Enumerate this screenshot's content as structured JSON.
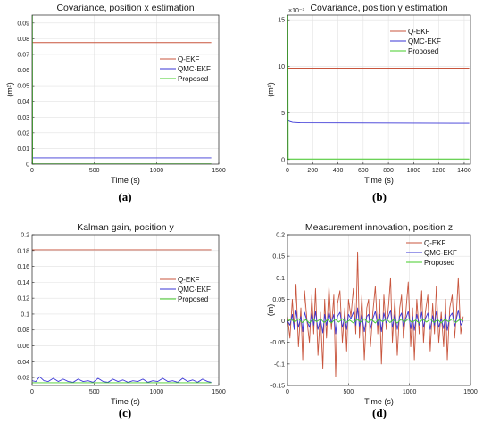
{
  "colors": {
    "Q-EKF": "#c8553d",
    "QMC-EKF": "#3a36d6",
    "Proposed": "#44cc2a",
    "grid": "#e2e2e2",
    "axis": "#262626"
  },
  "chart_data": [
    {
      "type": "line",
      "panel_label": "(a)",
      "title": "Covariance, position x estimation",
      "xlabel": "Time (s)",
      "ylabel": "(m²)",
      "xlim": [
        0,
        1500
      ],
      "ylim": [
        0,
        0.095
      ],
      "xticks": [
        "0",
        "500",
        "1000",
        "1500"
      ],
      "yticks": [
        "0",
        "0.01",
        "0.02",
        "0.03",
        "0.04",
        "0.05",
        "0.06",
        "0.07",
        "0.08",
        "0.09"
      ],
      "legend": "right",
      "series": [
        {
          "name": "Q-EKF",
          "x": [
            0,
            1440
          ],
          "y": [
            0.0775,
            0.0775
          ]
        },
        {
          "name": "QMC-EKF",
          "x": [
            0,
            1440
          ],
          "y": [
            0.004,
            0.004
          ]
        },
        {
          "name": "Proposed",
          "x": [
            0,
            2,
            4,
            1440
          ],
          "y": [
            0.095,
            0.095,
            0.0002,
            0.0002
          ]
        }
      ]
    },
    {
      "type": "line",
      "panel_label": "(b)",
      "title": "Covariance, position y estimation",
      "xlabel": "Time (s)",
      "ylabel": "(m²)",
      "exponent": "×10⁻³",
      "xlim": [
        0,
        1450
      ],
      "ylim": [
        -0.5,
        15.5
      ],
      "xticks": [
        "0",
        "200",
        "400",
        "600",
        "800",
        "1000",
        "1200",
        "1400"
      ],
      "yticks": [
        "0",
        "5",
        "10",
        "15"
      ],
      "legend": "top-right",
      "series": [
        {
          "name": "Q-EKF",
          "x": [
            0,
            1440
          ],
          "y": [
            9.8,
            9.8
          ]
        },
        {
          "name": "QMC-EKF",
          "x": [
            0,
            15,
            40,
            100,
            1440
          ],
          "y": [
            4.3,
            4.1,
            4.0,
            3.95,
            3.9
          ]
        },
        {
          "name": "Proposed",
          "x": [
            0,
            3,
            6,
            1440
          ],
          "y": [
            15.5,
            15.5,
            0.05,
            0.05
          ]
        }
      ]
    },
    {
      "type": "line",
      "panel_label": "(c)",
      "title": "Kalman gain, position y",
      "xlabel": "Time (s)",
      "ylabel": "",
      "xlim": [
        0,
        1500
      ],
      "ylim": [
        0.01,
        0.2
      ],
      "xticks": [
        "0",
        "500",
        "1000",
        "1500"
      ],
      "yticks": [
        "0.02",
        "0.04",
        "0.06",
        "0.08",
        "0.1",
        "0.12",
        "0.14",
        "0.16",
        "0.18",
        "0.2"
      ],
      "legend": "right",
      "series": [
        {
          "name": "Q-EKF",
          "x": [
            0,
            1440
          ],
          "y": [
            0.181,
            0.181
          ]
        },
        {
          "name": "QMC-EKF",
          "x": [
            0,
            30,
            60,
            95,
            130,
            170,
            210,
            250,
            290,
            330,
            370,
            410,
            450,
            490,
            530,
            570,
            610,
            650,
            690,
            730,
            770,
            810,
            850,
            890,
            930,
            970,
            1010,
            1050,
            1090,
            1130,
            1170,
            1210,
            1250,
            1290,
            1330,
            1370,
            1410,
            1440
          ],
          "y": [
            0.016,
            0.015,
            0.021,
            0.016,
            0.015,
            0.019,
            0.015,
            0.018,
            0.015,
            0.014,
            0.018,
            0.015,
            0.016,
            0.014,
            0.019,
            0.015,
            0.014,
            0.018,
            0.015,
            0.017,
            0.014,
            0.016,
            0.015,
            0.018,
            0.014,
            0.016,
            0.015,
            0.019,
            0.015,
            0.016,
            0.014,
            0.019,
            0.015,
            0.017,
            0.014,
            0.018,
            0.015,
            0.014
          ]
        },
        {
          "name": "Proposed",
          "x": [
            0,
            1440
          ],
          "y": [
            0.0135,
            0.0135
          ]
        }
      ]
    },
    {
      "type": "line",
      "panel_label": "(d)",
      "title": "Measurement innovation, position z",
      "xlabel": "Time (s)",
      "ylabel": "(m)",
      "xlim": [
        0,
        1500
      ],
      "ylim": [
        -0.15,
        0.2
      ],
      "xticks": [
        "0",
        "500",
        "1000",
        "1500"
      ],
      "yticks": [
        "-0.15",
        "-0.1",
        "-0.05",
        "0",
        "0.05",
        "0.1",
        "0.15",
        "0.2"
      ],
      "legend": "top-right",
      "series": [
        {
          "name": "Q-EKF",
          "x": [
            0,
            20,
            40,
            55,
            70,
            90,
            110,
            125,
            140,
            160,
            180,
            200,
            215,
            230,
            250,
            270,
            290,
            305,
            320,
            340,
            360,
            380,
            395,
            410,
            430,
            450,
            470,
            485,
            500,
            520,
            540,
            560,
            575,
            590,
            610,
            630,
            650,
            665,
            680,
            700,
            720,
            740,
            755,
            770,
            790,
            810,
            830,
            845,
            860,
            880,
            900,
            920,
            935,
            950,
            970,
            990,
            1010,
            1025,
            1040,
            1060,
            1080,
            1100,
            1115,
            1130,
            1150,
            1170,
            1190,
            1205,
            1220,
            1240,
            1260,
            1280,
            1295,
            1310,
            1330,
            1350,
            1370,
            1385,
            1400,
            1420,
            1440
          ],
          "y": [
            0.01,
            -0.04,
            0.05,
            -0.02,
            0.085,
            -0.06,
            0.03,
            -0.09,
            0.07,
            0.0,
            -0.05,
            0.06,
            -0.03,
            0.075,
            -0.08,
            0.02,
            -0.11,
            0.05,
            -0.04,
            0.08,
            -0.02,
            0.06,
            -0.13,
            0.04,
            0.07,
            -0.05,
            0.03,
            -0.07,
            0.05,
            0.01,
            0.075,
            -0.03,
            0.16,
            -0.04,
            0.06,
            -0.09,
            0.03,
            0.05,
            -0.06,
            0.02,
            0.08,
            -0.03,
            0.05,
            -0.1,
            0.06,
            -0.02,
            0.04,
            0.1,
            -0.05,
            0.05,
            -0.08,
            0.03,
            0.06,
            -0.04,
            0.02,
            0.09,
            -0.06,
            0.03,
            -0.09,
            0.05,
            -0.03,
            0.07,
            -0.05,
            0.02,
            0.06,
            -0.07,
            0.04,
            -0.03,
            0.08,
            -0.05,
            0.02,
            -0.06,
            0.05,
            -0.09,
            0.03,
            0.06,
            -0.04,
            0.02,
            0.1,
            -0.03,
            0.01
          ]
        },
        {
          "name": "QMC-EKF",
          "x": [
            0,
            20,
            40,
            55,
            70,
            90,
            110,
            125,
            140,
            160,
            180,
            200,
            215,
            230,
            250,
            270,
            290,
            305,
            320,
            340,
            360,
            380,
            395,
            410,
            430,
            450,
            470,
            485,
            500,
            520,
            540,
            560,
            575,
            590,
            610,
            630,
            650,
            665,
            680,
            700,
            720,
            740,
            755,
            770,
            790,
            810,
            830,
            845,
            860,
            880,
            900,
            920,
            935,
            950,
            970,
            990,
            1010,
            1025,
            1040,
            1060,
            1080,
            1100,
            1115,
            1130,
            1150,
            1170,
            1190,
            1205,
            1220,
            1240,
            1260,
            1280,
            1295,
            1310,
            1330,
            1350,
            1370,
            1385,
            1400,
            1420,
            1440
          ],
          "y": [
            0.0,
            -0.01,
            0.015,
            -0.02,
            0.025,
            -0.015,
            0.01,
            -0.025,
            0.02,
            0.0,
            -0.015,
            0.018,
            -0.01,
            0.022,
            -0.02,
            0.005,
            -0.028,
            0.015,
            -0.01,
            0.02,
            -0.005,
            0.015,
            -0.03,
            0.01,
            0.02,
            -0.015,
            0.01,
            -0.02,
            0.015,
            0.005,
            0.02,
            -0.01,
            0.03,
            -0.012,
            0.015,
            -0.025,
            0.01,
            0.015,
            -0.018,
            0.005,
            0.022,
            -0.01,
            0.015,
            -0.025,
            0.018,
            -0.005,
            0.012,
            0.025,
            -0.015,
            0.015,
            -0.02,
            0.01,
            0.018,
            -0.012,
            0.005,
            0.022,
            -0.018,
            0.01,
            -0.022,
            0.015,
            -0.01,
            0.02,
            -0.015,
            0.005,
            0.018,
            -0.02,
            0.012,
            -0.01,
            0.022,
            -0.015,
            0.005,
            -0.018,
            0.015,
            -0.022,
            0.01,
            0.018,
            -0.012,
            0.005,
            0.025,
            -0.01,
            0.0
          ]
        },
        {
          "name": "Proposed",
          "x": [
            0,
            30,
            60,
            90,
            120,
            150,
            180,
            210,
            240,
            270,
            300,
            330,
            360,
            390,
            420,
            450,
            480,
            510,
            540,
            570,
            600,
            630,
            660,
            690,
            720,
            750,
            780,
            810,
            840,
            870,
            900,
            930,
            960,
            990,
            1020,
            1050,
            1080,
            1110,
            1140,
            1170,
            1200,
            1230,
            1260,
            1290,
            1320,
            1350,
            1380,
            1410,
            1440
          ],
          "y": [
            0.0,
            0.004,
            -0.003,
            0.005,
            -0.004,
            0.003,
            -0.005,
            0.004,
            -0.002,
            0.005,
            -0.004,
            0.003,
            -0.005,
            0.004,
            -0.003,
            0.005,
            -0.004,
            0.002,
            -0.005,
            0.004,
            -0.003,
            0.005,
            -0.004,
            0.003,
            -0.005,
            0.004,
            -0.002,
            0.005,
            -0.004,
            0.003,
            -0.005,
            0.004,
            -0.003,
            0.005,
            -0.004,
            0.002,
            -0.005,
            0.004,
            -0.003,
            0.005,
            -0.004,
            0.003,
            -0.005,
            0.004,
            -0.002,
            0.005,
            -0.004,
            0.003,
            0.0
          ]
        }
      ]
    }
  ]
}
